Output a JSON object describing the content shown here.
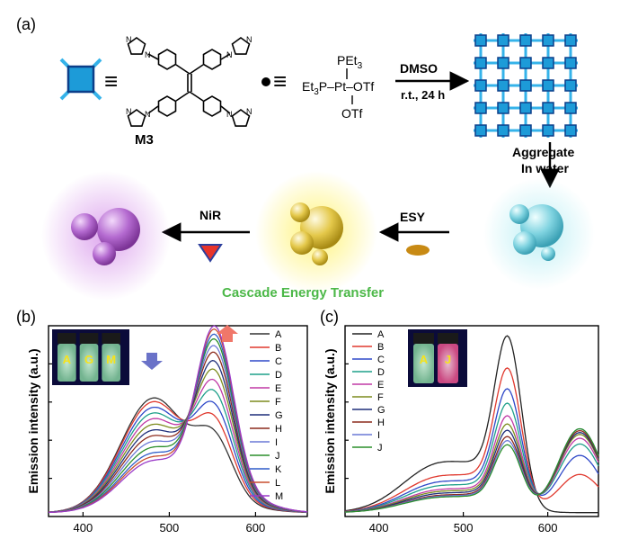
{
  "panel_a": {
    "label": "(a)",
    "compound_label": "M3",
    "equiv": "≡",
    "pt_top": "PEt",
    "pt_top_sub": "3",
    "pt_left": "Et",
    "pt_left_sub": "3",
    "pt_mid": "P–Pt–OTf",
    "pt_bottom": "OTf",
    "imidazole_n": "N",
    "step1_top": "DMSO",
    "step1_bottom": "r.t., 24 h",
    "step2_top": "Aggregate",
    "step2_bottom": "In water",
    "step3": "ESY",
    "step4": "NiR",
    "caption": "Cascade Energy Transfer",
    "colors": {
      "node": "#1d9bd8",
      "node_dark": "#0b3f8a",
      "caption": "#4cb848",
      "purple": "#a55cc0",
      "yellow": "#e8d23a",
      "cyan": "#7fd3e0",
      "esy": "#c88a14",
      "nir_red": "#e8342a",
      "nir_blue": "#2c3e9c"
    }
  },
  "panel_b": {
    "label": "(b)",
    "ylabel": "Emission intensity (a.u.)",
    "inset_labels": [
      "A",
      "G",
      "M"
    ],
    "chart_data": {
      "type": "line",
      "xlim": [
        360,
        660
      ],
      "ylim": [
        0,
        1
      ],
      "xticks": [
        "400",
        "500",
        "600"
      ],
      "legend_position": "top-right",
      "series": [
        {
          "name": "A",
          "color": "#333333",
          "peak1": 0.6,
          "peak2": 0.32
        },
        {
          "name": "B",
          "color": "#e0392e",
          "peak1": 0.58,
          "peak2": 0.4
        },
        {
          "name": "C",
          "color": "#2e48c8",
          "peak1": 0.55,
          "peak2": 0.47
        },
        {
          "name": "D",
          "color": "#1fa08a",
          "peak1": 0.52,
          "peak2": 0.54
        },
        {
          "name": "E",
          "color": "#c03aa6",
          "peak1": 0.49,
          "peak2": 0.6
        },
        {
          "name": "F",
          "color": "#7d8c1e",
          "peak1": 0.46,
          "peak2": 0.66
        },
        {
          "name": "G",
          "color": "#1f2f7a",
          "peak1": 0.43,
          "peak2": 0.71
        },
        {
          "name": "H",
          "color": "#8c2a1c",
          "peak1": 0.4,
          "peak2": 0.76
        },
        {
          "name": "I",
          "color": "#6a78d6",
          "peak1": 0.37,
          "peak2": 0.8
        },
        {
          "name": "J",
          "color": "#2b8f2b",
          "peak1": 0.34,
          "peak2": 0.84
        },
        {
          "name": "K",
          "color": "#2e5cc8",
          "peak1": 0.31,
          "peak2": 0.87
        },
        {
          "name": "L",
          "color": "#c84e2e",
          "peak1": 0.29,
          "peak2": 0.9
        },
        {
          "name": "M",
          "color": "#9a3ac8",
          "peak1": 0.27,
          "peak2": 0.92
        }
      ]
    }
  },
  "panel_c": {
    "label": "(c)",
    "ylabel": "Emission intensity (a.u.)",
    "inset_labels": [
      "A",
      "J"
    ],
    "chart_data": {
      "type": "line",
      "xlim": [
        360,
        660
      ],
      "ylim": [
        0,
        1
      ],
      "xticks": [
        "400",
        "500",
        "600"
      ],
      "legend_position": "top-left",
      "series": [
        {
          "name": "A",
          "color": "#222222",
          "p1": 0.26,
          "p2": 0.85,
          "p3": 0.0
        },
        {
          "name": "B",
          "color": "#e0392e",
          "p1": 0.19,
          "p2": 0.7,
          "p3": 0.2
        },
        {
          "name": "C",
          "color": "#2e48c8",
          "p1": 0.16,
          "p2": 0.6,
          "p3": 0.3
        },
        {
          "name": "D",
          "color": "#1fa08a",
          "p1": 0.14,
          "p2": 0.53,
          "p3": 0.36
        },
        {
          "name": "E",
          "color": "#c03aa6",
          "p1": 0.12,
          "p2": 0.47,
          "p3": 0.39
        },
        {
          "name": "F",
          "color": "#7d8c1e",
          "p1": 0.11,
          "p2": 0.43,
          "p3": 0.41
        },
        {
          "name": "G",
          "color": "#1f2f7a",
          "p1": 0.1,
          "p2": 0.4,
          "p3": 0.42
        },
        {
          "name": "H",
          "color": "#8c2a1c",
          "p1": 0.09,
          "p2": 0.37,
          "p3": 0.43
        },
        {
          "name": "I",
          "color": "#6a78d6",
          "p1": 0.085,
          "p2": 0.35,
          "p3": 0.44
        },
        {
          "name": "J",
          "color": "#2b8f2b",
          "p1": 0.08,
          "p2": 0.33,
          "p3": 0.44
        }
      ]
    }
  }
}
